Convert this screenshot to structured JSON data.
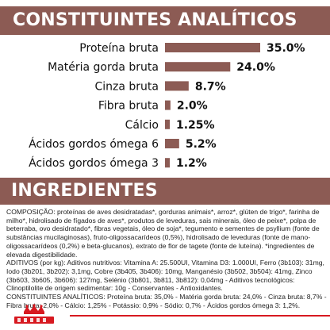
{
  "header": {
    "title": "CONSTITUINTES ANALÍTICOS"
  },
  "chart_data": {
    "type": "bar",
    "categories": [
      "Proteína bruta",
      "Matéria gorda bruta",
      "Cinza bruta",
      "Fibra bruta",
      "Cálcio",
      "Ácidos gordos ómega 6",
      "Ácidos gordos ómega 3"
    ],
    "values": [
      35.0,
      24.0,
      8.7,
      2.0,
      1.25,
      5.2,
      1.2
    ],
    "labels": [
      "35.0%",
      "24.0%",
      "8.7%",
      "2.0%",
      "1.25%",
      "5.2%",
      "1.2%"
    ],
    "title": "",
    "xlabel": "",
    "ylabel": "",
    "xlim": [
      0,
      45
    ],
    "orientation": "horizontal",
    "color": "#8c5b54"
  },
  "ingredients_section": {
    "title": "INGREDIENTES",
    "composition": "COMPOSIÇÃO: proteínas de aves desidratadas*, gorduras animais*, arroz*, glúten de trigo*, farinha de milho*, hidrolisado de fígados de aves*, produtos de leveduras, sais minerais, óleo de peixe*, polpa de beterraba, ovo desidratado*, fibras vegetais, óleo de soja*, tegumento e sementes de psyllium (fonte de substâncias mucilaginosas), fruto-oligossacarídeos (0,5%), hidrolisado de leveduras (fonte de mano-oligossacarídeos (0,2%) e beta-glucanos), extrato de flor de tagete (fonte de luteína). *ingredientes de elevada digestibilidade.",
    "additives": "ADITIVOS (por kg): Aditivos nutritivos: Vitamina A: 25.500UI, Vitamina D3: 1.000UI, Ferro (3b103): 31mg, Iodo (3b201, 3b202): 3,1mg, Cobre (3b405, 3b406): 10mg, Manganésio (3b502, 3b504): 41mg, Zinco (3b603, 3b605, 3b606): 127mg, Selénio (3b801, 3b811, 3b812): 0,04mg - Aditivos tecnológicos: Clinoptilolite de origem sedimentar: 10g - Conservantes - Antioxidantes.",
    "analytical": "CONSTITUINTES ANALÍTICOS: Proteína bruta: 35,0% - Matéria gorda bruta: 24,0% - Cinza bruta: 8,7% - Fibra bruta: 2,0% - Cálcio: 1,25% - Potássio: 0,9% - Sódio: 0,7% - Ácidos gordos ómega 3: 1,2%."
  },
  "brand": {
    "logo_icon": "royal-canin-crown-logo-icon",
    "accent": "#d71920",
    "primary": "#8c5b54"
  }
}
